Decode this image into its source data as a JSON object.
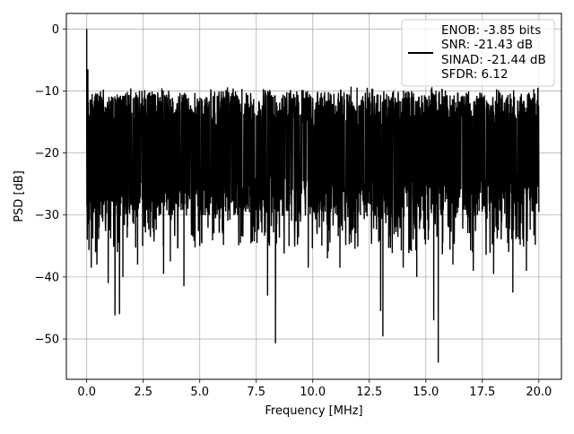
{
  "chart_data": {
    "type": "line",
    "title": "",
    "xlabel": "Frequency [MHz]",
    "ylabel": "PSD [dB]",
    "xlim": [
      -0.9,
      21.0
    ],
    "ylim": [
      -56.5,
      2.5
    ],
    "xticks": [
      0.0,
      2.5,
      5.0,
      7.5,
      10.0,
      12.5,
      15.0,
      17.5,
      20.0
    ],
    "xtick_labels": [
      "0.0",
      "2.5",
      "5.0",
      "7.5",
      "10.0",
      "12.5",
      "15.0",
      "17.5",
      "20.0"
    ],
    "yticks": [
      0,
      -10,
      -20,
      -30,
      -40,
      -50
    ],
    "ytick_labels": [
      "0",
      "−10",
      "−20",
      "−30",
      "−40",
      "−50"
    ],
    "grid": true,
    "legend": {
      "placement": "top-right",
      "lines": [
        "ENOB: -3.85 bits",
        "SNR: -21.43 dB",
        "SINAD: -21.44 dB",
        "SFDR: 6.12"
      ]
    },
    "series": [
      {
        "color": "#000000",
        "x_range": [
          0.0,
          20.0
        ],
        "noise_band_db": [
          -30,
          -10
        ],
        "peak": {
          "x": 0.0,
          "y": 0.0
        },
        "notable_points": [
          {
            "x": 0.05,
            "y": -6.5
          },
          {
            "x": 0.08,
            "y": -31.0
          },
          {
            "x": 0.2,
            "y": -38.5
          },
          {
            "x": 0.45,
            "y": -38.0
          },
          {
            "x": 0.95,
            "y": -41.0
          },
          {
            "x": 1.25,
            "y": -46.2
          },
          {
            "x": 1.45,
            "y": -46.0
          },
          {
            "x": 1.6,
            "y": -40.0
          },
          {
            "x": 2.25,
            "y": -38.0
          },
          {
            "x": 3.4,
            "y": -39.5
          },
          {
            "x": 3.7,
            "y": -37.5
          },
          {
            "x": 4.3,
            "y": -41.5
          },
          {
            "x": 4.7,
            "y": -33.5
          },
          {
            "x": 6.8,
            "y": -34.5
          },
          {
            "x": 8.0,
            "y": -43.0
          },
          {
            "x": 8.35,
            "y": -50.7
          },
          {
            "x": 8.95,
            "y": -35.0
          },
          {
            "x": 9.8,
            "y": -38.5
          },
          {
            "x": 10.65,
            "y": -37.0
          },
          {
            "x": 11.2,
            "y": -38.5
          },
          {
            "x": 13.0,
            "y": -45.5
          },
          {
            "x": 13.1,
            "y": -49.6
          },
          {
            "x": 14.0,
            "y": -38.5
          },
          {
            "x": 14.6,
            "y": -40.0
          },
          {
            "x": 15.35,
            "y": -47.0
          },
          {
            "x": 15.55,
            "y": -53.8
          },
          {
            "x": 16.2,
            "y": -38.0
          },
          {
            "x": 17.1,
            "y": -39.0
          },
          {
            "x": 18.0,
            "y": -39.5
          },
          {
            "x": 18.85,
            "y": -42.5
          },
          {
            "x": 19.45,
            "y": -39.0
          },
          {
            "x": 20.0,
            "y": -29.5
          }
        ]
      }
    ]
  }
}
